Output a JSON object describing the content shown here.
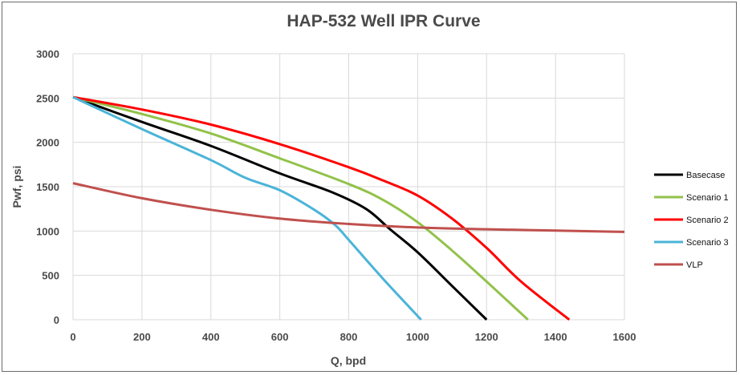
{
  "chart_data": {
    "type": "line",
    "title": "HAP-532 Well IPR Curve",
    "xlabel": "Q, bpd",
    "ylabel": "Pwf, psi",
    "xlim": [
      0,
      1600
    ],
    "ylim": [
      0,
      3000
    ],
    "x_ticks": [
      "0",
      "200",
      "400",
      "600",
      "800",
      "1000",
      "1200",
      "1400",
      "1600"
    ],
    "y_ticks": [
      "0",
      "500",
      "1000",
      "1500",
      "2000",
      "2500",
      "3000"
    ],
    "grid": true,
    "legend_position": "right",
    "series": [
      {
        "name": "Basecase",
        "color": "#000000",
        "points": [
          [
            0,
            2510
          ],
          [
            200,
            2230
          ],
          [
            400,
            1960
          ],
          [
            600,
            1650
          ],
          [
            750,
            1440
          ],
          [
            850,
            1250
          ],
          [
            920,
            1020
          ],
          [
            1000,
            760
          ],
          [
            1100,
            380
          ],
          [
            1200,
            0
          ]
        ]
      },
      {
        "name": "Scenario 1",
        "color": "#92c24a",
        "points": [
          [
            0,
            2510
          ],
          [
            200,
            2320
          ],
          [
            400,
            2100
          ],
          [
            600,
            1820
          ],
          [
            800,
            1530
          ],
          [
            900,
            1350
          ],
          [
            1000,
            1100
          ],
          [
            1100,
            780
          ],
          [
            1200,
            430
          ],
          [
            1320,
            0
          ]
        ]
      },
      {
        "name": "Scenario 2",
        "color": "#ff0000",
        "points": [
          [
            0,
            2510
          ],
          [
            200,
            2370
          ],
          [
            400,
            2200
          ],
          [
            600,
            1980
          ],
          [
            800,
            1720
          ],
          [
            900,
            1570
          ],
          [
            1000,
            1400
          ],
          [
            1100,
            1140
          ],
          [
            1200,
            810
          ],
          [
            1300,
            430
          ],
          [
            1440,
            0
          ]
        ]
      },
      {
        "name": "Scenario 3",
        "color": "#4ab4d8",
        "points": [
          [
            0,
            2510
          ],
          [
            200,
            2150
          ],
          [
            400,
            1800
          ],
          [
            500,
            1600
          ],
          [
            600,
            1460
          ],
          [
            700,
            1240
          ],
          [
            760,
            1070
          ],
          [
            800,
            900
          ],
          [
            900,
            460
          ],
          [
            1010,
            0
          ]
        ]
      },
      {
        "name": "VLP",
        "color": "#c0504d",
        "points": [
          [
            0,
            1540
          ],
          [
            200,
            1370
          ],
          [
            400,
            1240
          ],
          [
            600,
            1140
          ],
          [
            800,
            1080
          ],
          [
            1000,
            1040
          ],
          [
            1200,
            1020
          ],
          [
            1400,
            1005
          ],
          [
            1600,
            990
          ]
        ]
      }
    ]
  }
}
